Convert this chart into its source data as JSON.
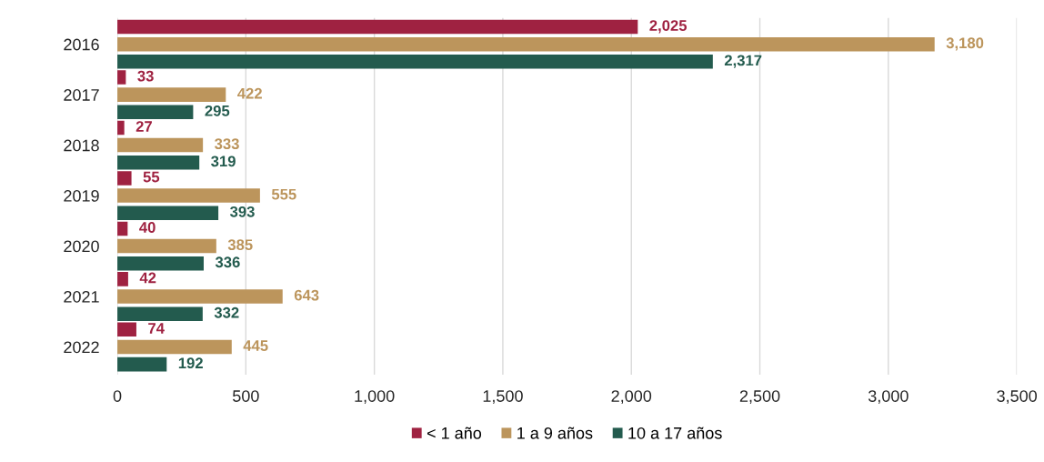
{
  "chart_data": {
    "type": "bar",
    "orientation": "horizontal",
    "categories": [
      "2016",
      "2017",
      "2018",
      "2019",
      "2020",
      "2021",
      "2022"
    ],
    "series": [
      {
        "name": "< 1 año",
        "color": "#9f2241",
        "values": [
          2025,
          33,
          27,
          55,
          40,
          42,
          74
        ],
        "value_labels": [
          "2,025",
          "33",
          "27",
          "55",
          "40",
          "42",
          "74"
        ]
      },
      {
        "name": "1 a 9 años",
        "color": "#bc955c",
        "values": [
          3180,
          422,
          333,
          555,
          385,
          643,
          445
        ],
        "value_labels": [
          "3,180",
          "422",
          "333",
          "555",
          "385",
          "643",
          "445"
        ]
      },
      {
        "name": "10 a 17 años",
        "color": "#235b4e",
        "values": [
          2317,
          295,
          319,
          393,
          336,
          332,
          192
        ],
        "value_labels": [
          "2,317",
          "295",
          "319",
          "393",
          "336",
          "332",
          "192"
        ]
      }
    ],
    "xlim": [
      0,
      3500
    ],
    "xticks": [
      0,
      500,
      {
        "value": 1000,
        "label": "1,000"
      },
      {
        "value": 1500,
        "label": "1,500"
      },
      {
        "value": 2000,
        "label": "2,000"
      },
      {
        "value": 2500,
        "label": "2,500"
      },
      {
        "value": 3000,
        "label": "3,000"
      },
      {
        "value": 3500,
        "label": "3,500"
      }
    ],
    "grid": "x",
    "legend": "bottom"
  }
}
